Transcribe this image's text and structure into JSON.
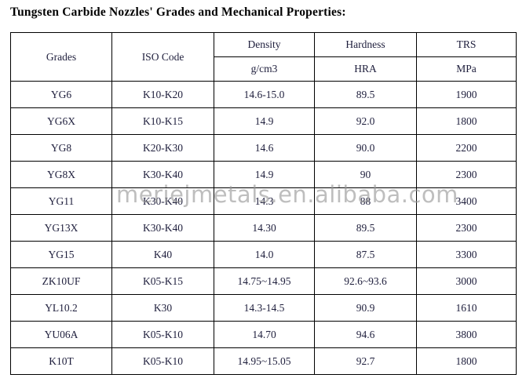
{
  "title": "Tungsten Carbide Nozzles' Grades and Mechanical Properties:",
  "watermark": "meriejmetals.en.alibaba.com",
  "colors": {
    "text": "#1e1e3c",
    "title": "#000000",
    "border": "#000000",
    "watermark": "#969696",
    "background": "#ffffff"
  },
  "table": {
    "header": {
      "grades": "Grades",
      "iso_code": "ISO Code",
      "density": "Density",
      "density_unit": "g/cm3",
      "hardness": "Hardness",
      "hardness_unit": "HRA",
      "trs": "TRS",
      "trs_unit": "MPa"
    },
    "rows": [
      {
        "grade": "YG6",
        "iso": "K10-K20",
        "density": "14.6-15.0",
        "hardness": "89.5",
        "trs": "1900"
      },
      {
        "grade": "YG6X",
        "iso": "K10-K15",
        "density": "14.9",
        "hardness": "92.0",
        "trs": "1800"
      },
      {
        "grade": "YG8",
        "iso": "K20-K30",
        "density": "14.6",
        "hardness": "90.0",
        "trs": "2200"
      },
      {
        "grade": "YG8X",
        "iso": "K30-K40",
        "density": "14.9",
        "hardness": "90",
        "trs": "2300"
      },
      {
        "grade": "YG11",
        "iso": "K30-K40",
        "density": "14.3",
        "hardness": "88",
        "trs": "3400"
      },
      {
        "grade": "YG13X",
        "iso": "K30-K40",
        "density": "14.30",
        "hardness": "89.5",
        "trs": "2300"
      },
      {
        "grade": "YG15",
        "iso": "K40",
        "density": "14.0",
        "hardness": "87.5",
        "trs": "3300"
      },
      {
        "grade": "ZK10UF",
        "iso": "K05-K15",
        "density": "14.75~14.95",
        "hardness": "92.6~93.6",
        "trs": "3000"
      },
      {
        "grade": "YL10.2",
        "iso": "K30",
        "density": "14.3-14.5",
        "hardness": "90.9",
        "trs": "1610"
      },
      {
        "grade": "YU06A",
        "iso": "K05-K10",
        "density": "14.70",
        "hardness": "94.6",
        "trs": "3800"
      },
      {
        "grade": "K10T",
        "iso": "K05-K10",
        "density": "14.95~15.05",
        "hardness": "92.7",
        "trs": "1800"
      }
    ]
  }
}
